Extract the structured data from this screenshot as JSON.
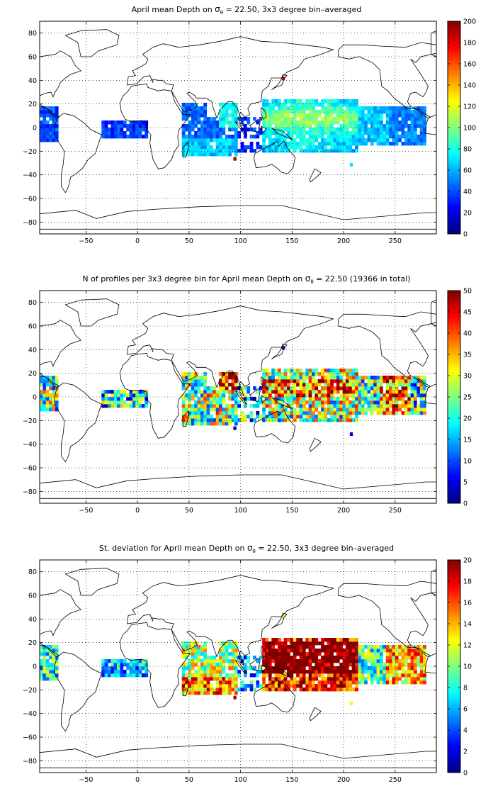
{
  "chart_data": [
    {
      "type": "heatmap",
      "title_main": "April mean Depth on ",
      "title_sigma": "σ",
      "title_sub": "θ",
      "title_rest": " = 22.50, 3x3 degree bin–averaged",
      "xlim": [
        -95,
        290
      ],
      "ylim": [
        -90,
        90
      ],
      "xticks": [
        -50,
        0,
        50,
        100,
        150,
        200,
        250
      ],
      "yticks": [
        -80,
        -60,
        -40,
        -20,
        0,
        20,
        40,
        60,
        80
      ],
      "grid": true,
      "colormap": "jet",
      "colorbar": {
        "min": 0,
        "max": 200,
        "ticks": [
          0,
          20,
          40,
          60,
          80,
          100,
          120,
          140,
          160,
          180,
          200
        ]
      }
    },
    {
      "type": "heatmap",
      "title_main": "N of profiles per 3x3 degree bin for April mean Depth on ",
      "title_sigma": "σ",
      "title_sub": "θ",
      "title_rest": " = 22.50 (19366 in total)",
      "xlim": [
        -95,
        290
      ],
      "ylim": [
        -90,
        90
      ],
      "xticks": [
        -50,
        0,
        50,
        100,
        150,
        200,
        250
      ],
      "yticks": [
        -80,
        -60,
        -40,
        -20,
        0,
        20,
        40,
        60,
        80
      ],
      "grid": true,
      "colormap": "jet",
      "colorbar": {
        "min": 0,
        "max": 50,
        "ticks": [
          0,
          5,
          10,
          15,
          20,
          25,
          30,
          35,
          40,
          45,
          50
        ]
      }
    },
    {
      "type": "heatmap",
      "title_main": "St. deviation for April mean Depth on ",
      "title_sigma": "σ",
      "title_sub": "θ",
      "title_rest": " = 22.50, 3x3 degree bin–averaged",
      "xlim": [
        -95,
        290
      ],
      "ylim": [
        -90,
        90
      ],
      "xticks": [
        -50,
        0,
        50,
        100,
        150,
        200,
        250
      ],
      "yticks": [
        -80,
        -60,
        -40,
        -20,
        0,
        20,
        40,
        60,
        80
      ],
      "grid": true,
      "colormap": "jet",
      "colorbar": {
        "min": 0,
        "max": 20,
        "ticks": [
          0,
          2,
          4,
          6,
          8,
          10,
          12,
          14,
          16,
          18,
          20
        ]
      }
    }
  ]
}
